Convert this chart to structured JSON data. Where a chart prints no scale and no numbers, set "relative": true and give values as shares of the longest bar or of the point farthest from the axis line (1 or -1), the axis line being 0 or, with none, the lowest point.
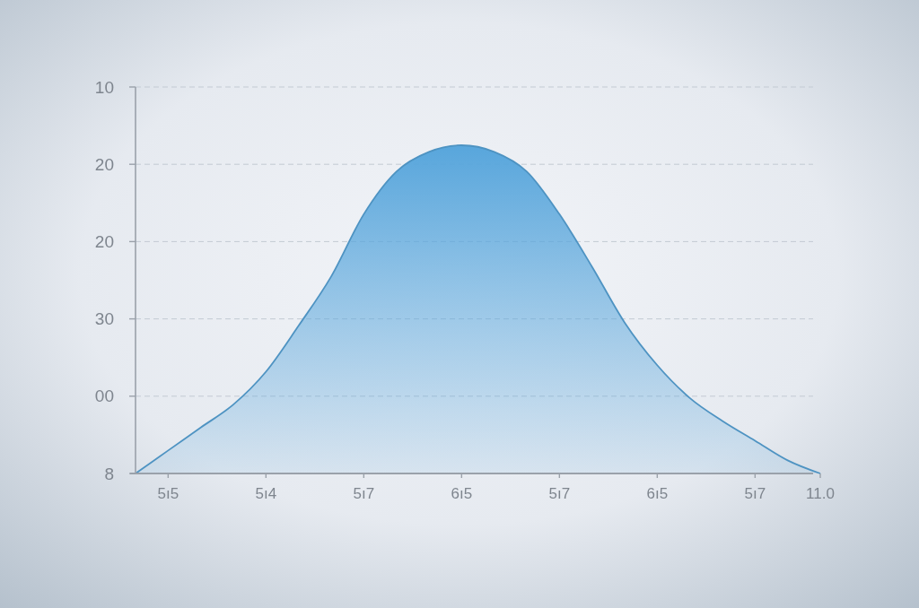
{
  "chart_data": {
    "type": "area",
    "categories": [
      null,
      "5ı5",
      null,
      null,
      "5ı4",
      null,
      null,
      "5ı7",
      null,
      null,
      "6ı5",
      null,
      null,
      "5ı7",
      null,
      null,
      "6ı5",
      null,
      null,
      "5ı7",
      null,
      "11.0"
    ],
    "values": [
      0,
      0.07,
      0.14,
      0.21,
      0.31,
      0.45,
      0.6,
      0.79,
      0.92,
      0.98,
      1,
      0.98,
      0.92,
      0.79,
      0.63,
      0.46,
      0.33,
      0.23,
      0.16,
      0.1,
      0.04,
      0
    ],
    "color": "#58a6dc",
    "relative": true,
    "annotations": [
      "10",
      "20",
      "20",
      "30",
      "00",
      "8"
    ],
    "grid": "y"
  }
}
